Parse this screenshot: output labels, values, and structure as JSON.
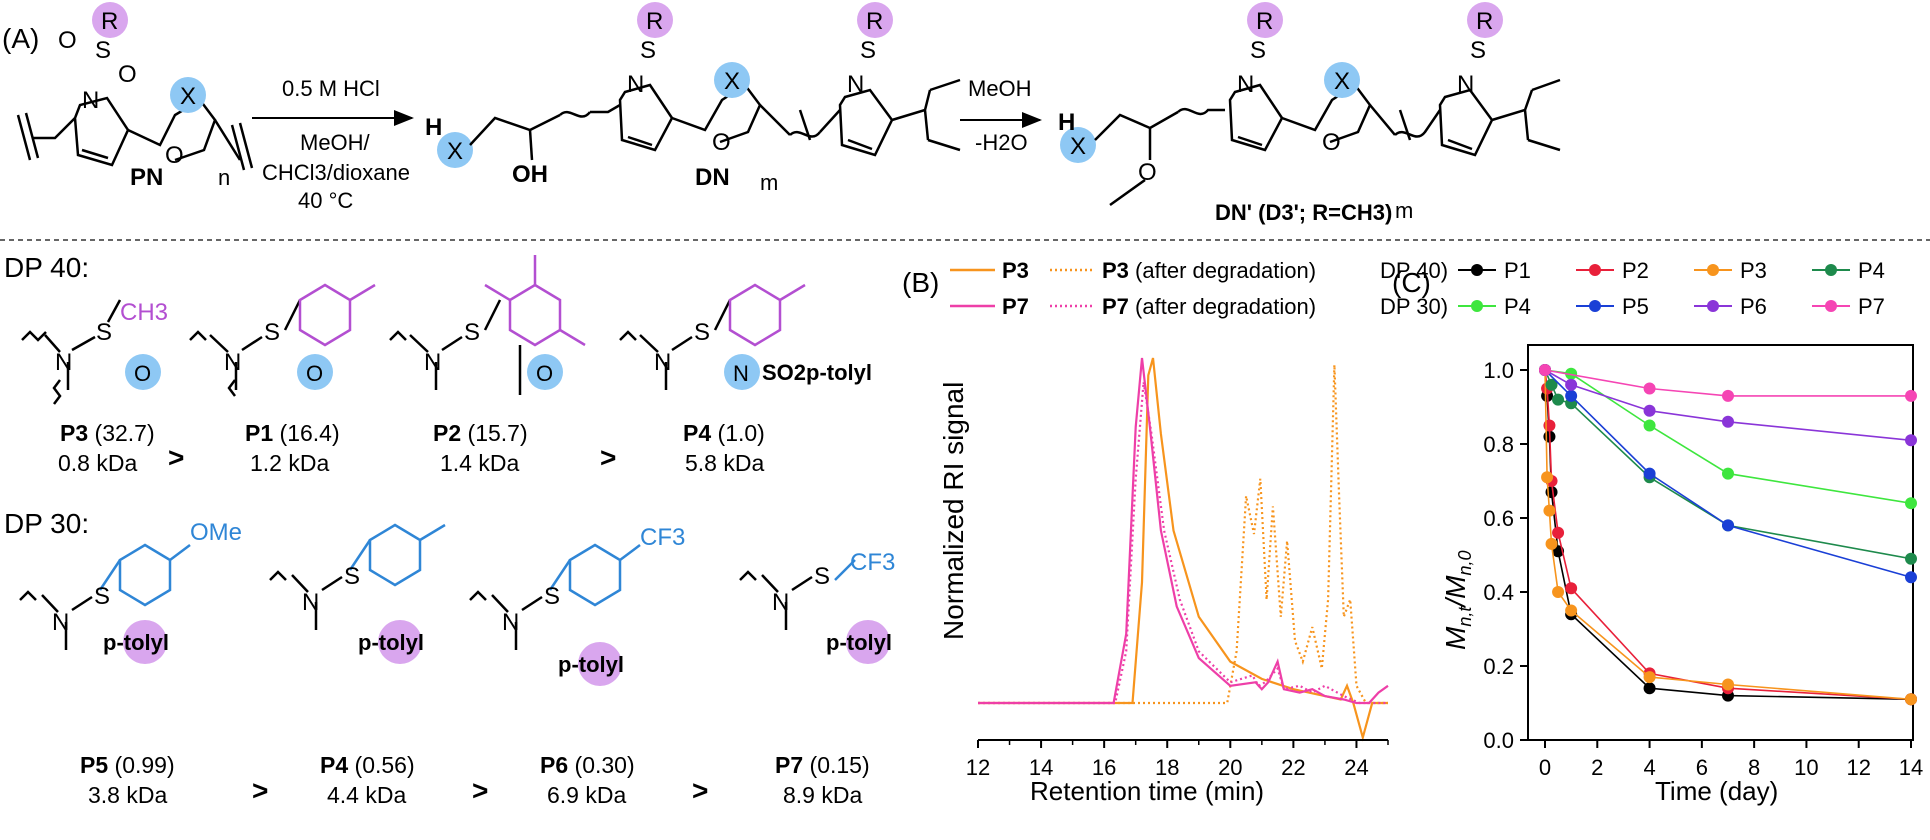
{
  "panel_a": {
    "label": "(A)",
    "left_structure": "PN",
    "sub_n": "n",
    "arrow1_top": "0.5 M HCl",
    "arrow1_bottom": [
      "MeOH/",
      "CHCl3/dioxane",
      "40 °C"
    ],
    "mid_structure": "DN",
    "sub_m": "m",
    "oh_label": "OH",
    "h_label": "H",
    "arrow2_top": "MeOH",
    "arrow2_bottom": "-H2O",
    "right_structure": "DN' (D3'; R=CH3)",
    "r_label": "R",
    "x_label": "X",
    "n_atom": "N",
    "o_atom": "O",
    "s_atom": "S"
  },
  "dp40": {
    "heading": "DP 40:",
    "items": [
      {
        "id": "P3",
        "value": "(32.7)",
        "mass": "0.8 kDa",
        "substituent": "CH3",
        "ring": "O"
      },
      {
        "id": "P1",
        "value": "(16.4)",
        "mass": "1.2 kDa",
        "substituent": "p-tolyl",
        "ring": "O"
      },
      {
        "id": "P2",
        "value": "(15.7)",
        "mass": "1.4 kDa",
        "substituent": "mesityl",
        "ring": "O"
      },
      {
        "id": "P4",
        "value": "(1.0)",
        "mass": "5.8 kDa",
        "substituent": "p-tolyl",
        "ring": "N",
        "ring_extra": "SO2p-tolyl"
      }
    ],
    "separators": [
      ">",
      ">"
    ]
  },
  "dp30": {
    "heading": "DP 30:",
    "items": [
      {
        "id": "P5",
        "value": "(0.99)",
        "mass": "3.8 kDa",
        "substituent": "OMe",
        "ring": "p-tolyl"
      },
      {
        "id": "P4",
        "value": "(0.56)",
        "mass": "4.4 kDa",
        "substituent": "CH3",
        "ring": "p-tolyl"
      },
      {
        "id": "P6",
        "value": "(0.30)",
        "mass": "6.9 kDa",
        "substituent": "CF3",
        "ring": "p-tolyl"
      },
      {
        "id": "P7",
        "value": "(0.15)",
        "mass": "8.9 kDa",
        "substituent": "CF3",
        "ring": "p-tolyl"
      }
    ],
    "separators": [
      ">",
      ">",
      ">"
    ]
  },
  "colors": {
    "purple_ring": "#d9a6ee",
    "blue_ring": "#8ec8f4",
    "purple_struct": "#b34fd1",
    "blue_struct": "#2f86d6",
    "orange": "#f7941d",
    "magenta": "#ee3fa8"
  },
  "chart_data": [
    {
      "type": "line",
      "panel": "(B)",
      "xlabel": "Retention time (min)",
      "ylabel": "Normalized RI signal",
      "xlim": [
        12,
        25
      ],
      "xticks": [
        12,
        14,
        16,
        18,
        20,
        22,
        24
      ],
      "legend": [
        "P3",
        "P3 (after degradation)",
        "P7",
        "P7 (after degradation)"
      ],
      "legend_suffix": "(after degradation)",
      "series": [
        {
          "name": "P3",
          "color": "#f7941d",
          "style": "solid",
          "x": [
            12,
            16.9,
            17.2,
            17.4,
            17.55,
            17.8,
            18.2,
            19,
            20,
            21,
            22,
            23,
            23.5,
            23.7,
            23.9,
            24.2,
            24.5,
            25
          ],
          "y": [
            0,
            0,
            0.35,
            0.95,
            1.0,
            0.78,
            0.5,
            0.25,
            0.12,
            0.07,
            0.04,
            0.02,
            0.01,
            0.05,
            0.0,
            -0.1,
            0.0,
            0
          ]
        },
        {
          "name": "P3 (after degradation)",
          "color": "#f7941d",
          "style": "dotted",
          "x": [
            12,
            19.9,
            20.2,
            20.5,
            20.75,
            20.95,
            21.15,
            21.35,
            21.6,
            21.8,
            22.05,
            22.3,
            22.6,
            22.9,
            23.1,
            23.3,
            23.45,
            23.6,
            23.8,
            24.0,
            24.3,
            25
          ],
          "y": [
            0,
            0,
            0.15,
            0.6,
            0.49,
            0.65,
            0.3,
            0.57,
            0.25,
            0.47,
            0.18,
            0.12,
            0.22,
            0.1,
            0.3,
            0.98,
            0.6,
            0.25,
            0.3,
            0.05,
            0.0,
            0
          ]
        },
        {
          "name": "P7",
          "color": "#ee3fa8",
          "style": "solid",
          "x": [
            12,
            16.3,
            16.7,
            17.0,
            17.2,
            17.45,
            17.8,
            18.3,
            19,
            20,
            20.8,
            21.0,
            21.2,
            21.5,
            21.7,
            22.2,
            22.6,
            23.0,
            23.6,
            24.0,
            24.4,
            24.7,
            25
          ],
          "y": [
            0,
            0,
            0.2,
            0.8,
            1.0,
            0.8,
            0.5,
            0.28,
            0.13,
            0.05,
            0.06,
            0.04,
            0.06,
            0.12,
            0.04,
            0.03,
            0.04,
            0.02,
            0.01,
            0.0,
            0.0,
            0.03,
            0.05
          ]
        },
        {
          "name": "P7 (after degradation)",
          "color": "#ee3fa8",
          "style": "dotted",
          "x": [
            12,
            16.35,
            16.7,
            17.0,
            17.25,
            17.5,
            17.9,
            18.4,
            19,
            20,
            20.7,
            20.9,
            21.1,
            21.5,
            21.7,
            22.2,
            22.6,
            23.0,
            23.6,
            24.1,
            25
          ],
          "y": [
            0,
            0,
            0.15,
            0.65,
            0.93,
            0.78,
            0.5,
            0.3,
            0.15,
            0.06,
            0.08,
            0.05,
            0.06,
            0.1,
            0.04,
            0.05,
            0.03,
            0.05,
            0.02,
            0.0,
            0
          ]
        }
      ]
    },
    {
      "type": "scatter",
      "panel": "(C)",
      "xlabel": "Time (day)",
      "ylabel": "Mn,t/Mn,0",
      "ylabel_main": "M",
      "ylabel_sub_t": "n,t",
      "ylabel_slash": "/",
      "ylabel_sub_0": "n,0",
      "xlim": [
        0,
        14
      ],
      "ylim": [
        0,
        1
      ],
      "xticks": [
        0,
        2,
        4,
        6,
        8,
        10,
        12,
        14
      ],
      "yticks": [
        0.0,
        0.2,
        0.4,
        0.6,
        0.8,
        1.0
      ],
      "legend_groups": [
        {
          "label": "DP 40)",
          "series": [
            "P1",
            "P2",
            "P3",
            "P4"
          ]
        },
        {
          "label": "DP 30)",
          "series": [
            "P4",
            "P5",
            "P6",
            "P7"
          ]
        }
      ],
      "series": [
        {
          "name": "P1",
          "group": "DP 40",
          "color": "#000000",
          "x": [
            0,
            0.08,
            0.17,
            0.25,
            0.5,
            1,
            4,
            7,
            14
          ],
          "y": [
            1.0,
            0.93,
            0.82,
            0.67,
            0.51,
            0.34,
            0.14,
            0.12,
            0.11
          ]
        },
        {
          "name": "P2",
          "group": "DP 40",
          "color": "#e8203a",
          "x": [
            0,
            0.08,
            0.17,
            0.25,
            0.5,
            1,
            4,
            7,
            14
          ],
          "y": [
            1.0,
            0.95,
            0.85,
            0.7,
            0.56,
            0.41,
            0.18,
            0.14,
            0.11
          ]
        },
        {
          "name": "P3",
          "group": "DP 40",
          "color": "#f7941d",
          "x": [
            0,
            0.08,
            0.17,
            0.25,
            0.5,
            1,
            4,
            7,
            14
          ],
          "y": [
            1.0,
            0.71,
            0.62,
            0.53,
            0.4,
            0.35,
            0.17,
            0.15,
            0.11
          ]
        },
        {
          "name": "P4",
          "group": "DP 40",
          "color": "#1e8a4c",
          "x": [
            0,
            0.25,
            0.5,
            1,
            4,
            7,
            14
          ],
          "y": [
            1.0,
            0.96,
            0.92,
            0.91,
            0.71,
            0.58,
            0.49
          ]
        },
        {
          "name": "P4",
          "group": "DP 30",
          "color": "#3ee63e",
          "x": [
            0,
            1,
            4,
            7,
            14
          ],
          "y": [
            1.0,
            0.99,
            0.85,
            0.72,
            0.64
          ]
        },
        {
          "name": "P5",
          "group": "DP 30",
          "color": "#1a3fd6",
          "x": [
            0,
            1,
            4,
            7,
            14
          ],
          "y": [
            1.0,
            0.93,
            0.72,
            0.58,
            0.44
          ]
        },
        {
          "name": "P6",
          "group": "DP 30",
          "color": "#8a35d8",
          "x": [
            0,
            1,
            4,
            7,
            14
          ],
          "y": [
            1.0,
            0.96,
            0.89,
            0.86,
            0.81
          ]
        },
        {
          "name": "P7",
          "group": "DP 30",
          "color": "#f545b4",
          "x": [
            0,
            4,
            7,
            14
          ],
          "y": [
            1.0,
            0.95,
            0.93,
            0.93
          ]
        }
      ]
    }
  ]
}
